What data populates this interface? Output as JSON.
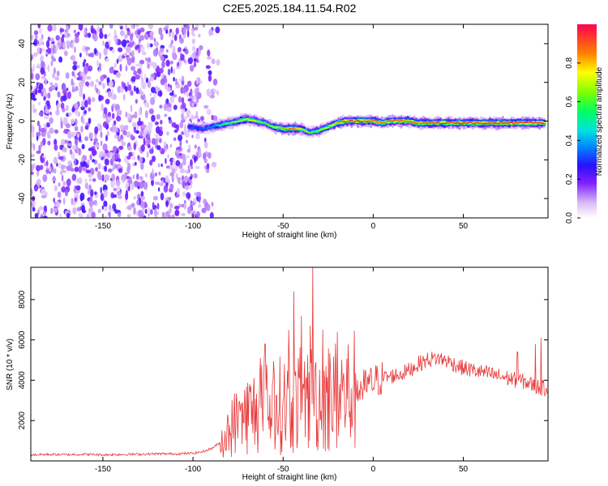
{
  "title": "C2E5.2025.184.11.54.R02",
  "chart_data": [
    {
      "type": "heatmap",
      "xlabel": "Height of straight line (km)",
      "ylabel": "Frequency (Hz)",
      "xlim": [
        -190,
        97
      ],
      "ylim": [
        -50,
        50
      ],
      "x_ticks": [
        -150,
        -100,
        -50,
        0,
        50
      ],
      "y_ticks": [
        -40,
        -20,
        0,
        20,
        40
      ],
      "colorbar": {
        "label": "Normalized spectral amplitude",
        "range": [
          0,
          1
        ],
        "ticks": [
          "0.0",
          "0.2",
          "0.4",
          "0.6",
          "0.8"
        ],
        "tick_values": [
          0,
          0.2,
          0.4,
          0.6,
          0.8
        ]
      },
      "noise_region_x": [
        -190,
        -90
      ],
      "ridge": {
        "x": [
          -102,
          -95,
          -90,
          -85,
          -80,
          -75,
          -70,
          -65,
          -60,
          -55,
          -50,
          -45,
          -40,
          -35,
          -30,
          -25,
          -20,
          -15,
          -10,
          -5,
          0,
          5,
          10,
          15,
          20,
          25,
          30,
          35,
          40,
          45,
          50,
          55,
          60,
          65,
          70,
          75,
          80,
          85,
          90,
          95
        ],
        "y": [
          -3,
          -4,
          -3,
          -2,
          -1,
          0,
          1,
          0,
          -1,
          -3,
          -4,
          -4,
          -4,
          -6,
          -5,
          -3,
          -1,
          0,
          0,
          0,
          0,
          -1,
          0,
          0,
          0,
          -1,
          -1,
          -1,
          -1,
          -1,
          -1,
          -1,
          -1,
          -1,
          -1,
          -1,
          -1,
          -1,
          -1,
          -1
        ],
        "peak_amplitude": [
          0.4,
          0.45,
          0.5,
          0.55,
          0.6,
          0.7,
          0.75,
          0.7,
          0.6,
          0.7,
          0.85,
          0.9,
          0.7,
          0.6,
          0.65,
          0.75,
          0.85,
          0.95,
          0.95,
          0.95,
          0.9,
          0.85,
          0.95,
          0.85,
          0.9,
          0.9,
          0.9,
          0.95,
          0.95,
          0.95,
          0.95,
          0.95,
          0.95,
          0.95,
          0.95,
          0.95,
          0.95,
          0.95,
          0.95,
          0.95
        ]
      }
    },
    {
      "type": "line",
      "xlabel": "Height of straight line (km)",
      "ylabel": "SNR (10 * v/v)",
      "xlim": [
        -190,
        97
      ],
      "ylim": [
        0,
        9600
      ],
      "x_ticks": [
        -150,
        -100,
        -50,
        0,
        50
      ],
      "y_ticks": [
        2000,
        4000,
        6000,
        8000
      ],
      "color": "#e8393a",
      "series": [
        {
          "x": [
            -190,
            -180,
            -170,
            -160,
            -150,
            -140,
            -130,
            -120,
            -110,
            -100,
            -95,
            -90,
            -85,
            -80,
            -75,
            -70,
            -65,
            -60,
            -55,
            -50,
            -45,
            -40,
            -35,
            -30,
            -25,
            -20,
            -15,
            -10,
            -5,
            0,
            5,
            10,
            15,
            20,
            25,
            30,
            35,
            40,
            45,
            50,
            55,
            60,
            65,
            70,
            75,
            80,
            85,
            90,
            95
          ],
          "values": [
            300,
            320,
            310,
            330,
            300,
            320,
            330,
            350,
            350,
            380,
            450,
            600,
            900,
            1500,
            2100,
            2300,
            2500,
            2600,
            2700,
            2800,
            2900,
            3000,
            3100,
            3100,
            3200,
            3200,
            3300,
            3500,
            3700,
            3900,
            4100,
            4200,
            4300,
            4500,
            4800,
            5000,
            5100,
            5000,
            4800,
            4600,
            4500,
            4400,
            4300,
            4200,
            4100,
            4000,
            3900,
            3700,
            3600
          ]
        }
      ],
      "spikes": [
        {
          "x": -33.5,
          "value": 9600
        },
        {
          "x": -44,
          "value": 8400
        },
        {
          "x": -40,
          "value": 7200
        },
        {
          "x": -35,
          "value": 6700
        },
        {
          "x": -28,
          "value": 6500
        },
        {
          "x": -20,
          "value": 6400
        },
        {
          "x": -60,
          "value": 5800
        },
        {
          "x": -47,
          "value": 6500
        },
        {
          "x": 93,
          "value": 6100
        },
        {
          "x": 90,
          "value": 5800
        },
        {
          "x": 80,
          "value": 5400
        }
      ]
    }
  ]
}
